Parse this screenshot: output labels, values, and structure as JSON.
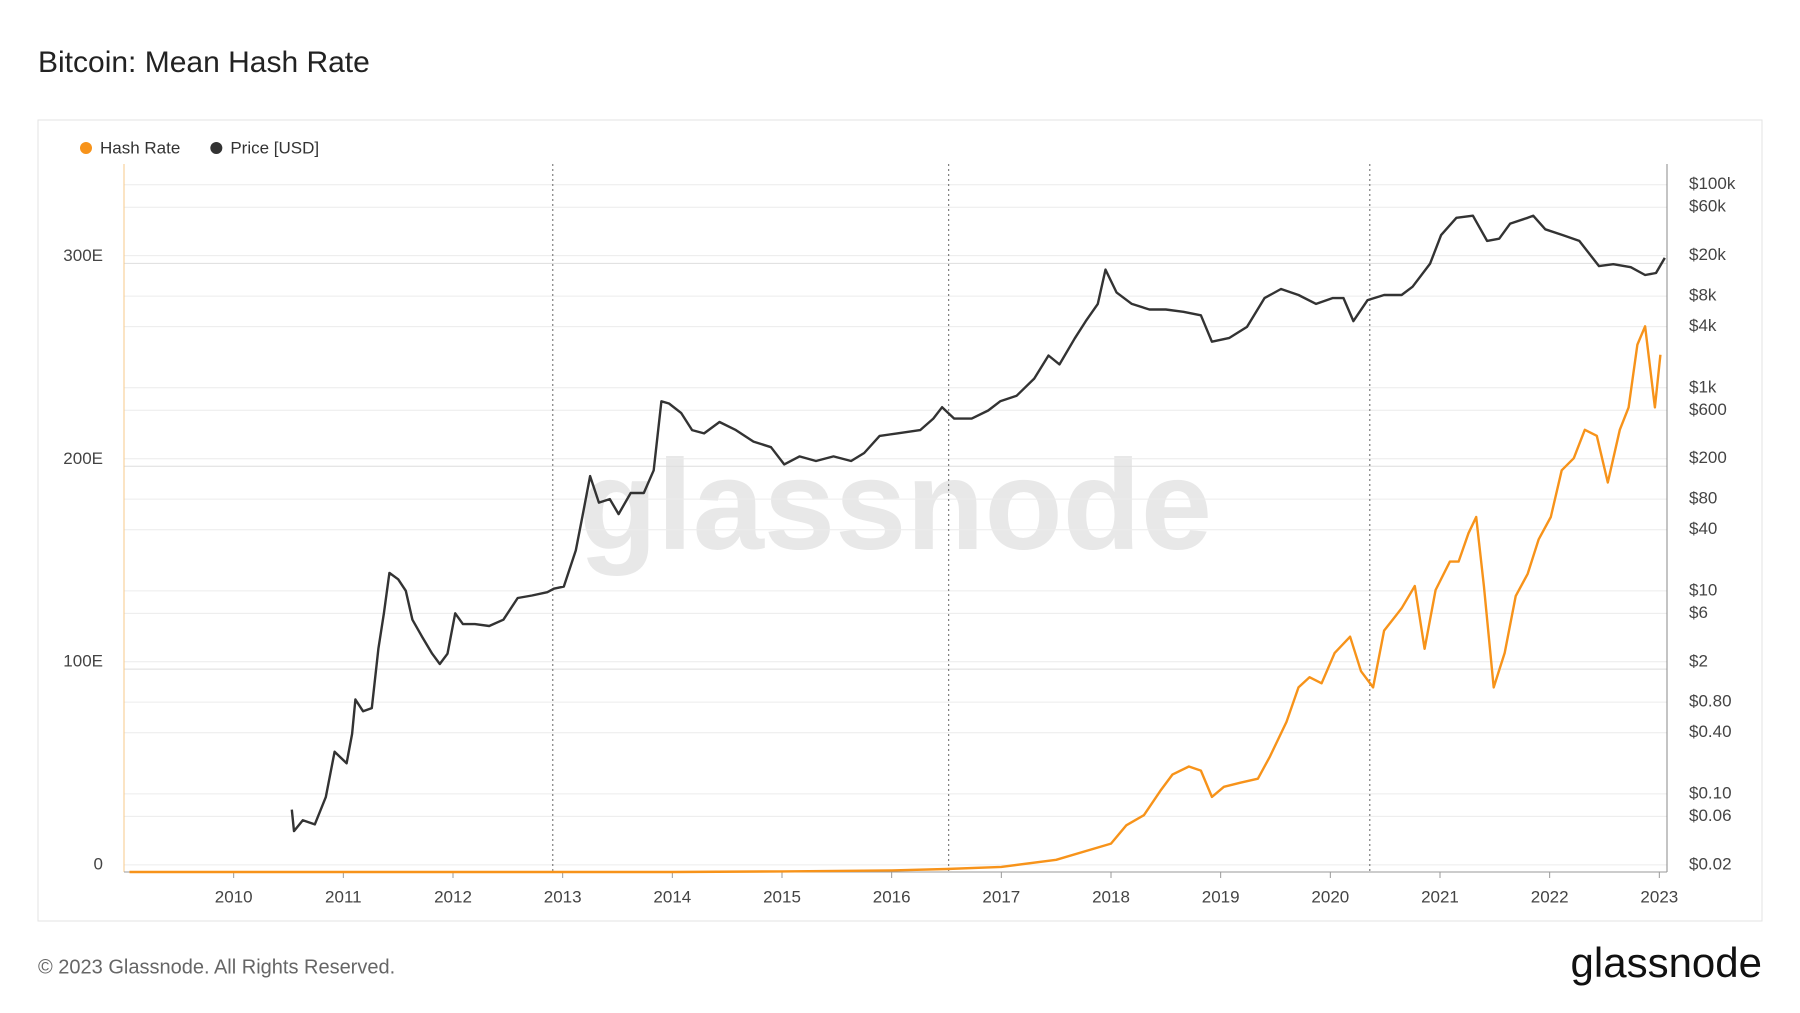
{
  "chart_data": {
    "type": "line",
    "title": "Bitcoin: Mean Hash Rate",
    "watermark": "glassnode",
    "xlim": [
      2009,
      2023.07
    ],
    "xticks": [
      2010,
      2011,
      2012,
      2013,
      2014,
      2015,
      2016,
      2017,
      2018,
      2019,
      2020,
      2021,
      2022,
      2023
    ],
    "ylim": [
      0,
      349
    ],
    "yticks": [
      0,
      {
        "value": 100,
        "label": "100E"
      },
      {
        "value": 200,
        "label": "200E"
      },
      {
        "value": 300,
        "label": "300E"
      }
    ],
    "y2lim": [
      0.017,
      160000
    ],
    "y2scale": "log",
    "y2ticks": [
      {
        "value": 100000,
        "label": "$100k"
      },
      {
        "value": 60000,
        "label": "$60k"
      },
      {
        "value": 20000,
        "label": "$20k"
      },
      {
        "value": 8000,
        "label": "$8k"
      },
      {
        "value": 4000,
        "label": "$4k"
      },
      {
        "value": 1000,
        "label": "$1k"
      },
      {
        "value": 600,
        "label": "$600"
      },
      {
        "value": 200,
        "label": "$200"
      },
      {
        "value": 80,
        "label": "$80"
      },
      {
        "value": 40,
        "label": "$40"
      },
      {
        "value": 10,
        "label": "$10"
      },
      {
        "value": 6,
        "label": "$6"
      },
      {
        "value": 2,
        "label": "$2"
      },
      {
        "value": 0.8,
        "label": "$0.80"
      },
      {
        "value": 0.4,
        "label": "$0.40"
      },
      {
        "value": 0.1,
        "label": "$0.10"
      },
      {
        "value": 0.06,
        "label": "$0.06"
      },
      {
        "value": 0.02,
        "label": "$0.02"
      }
    ],
    "grid": true,
    "halvings": [
      2012.91,
      2016.52,
      2020.36
    ],
    "legend": "top-left",
    "series": [
      {
        "name": "Hash Rate",
        "color": "#f7931a",
        "axis": "y",
        "x": [
          2009.05,
          2011.0,
          2013.0,
          2014.0,
          2015.0,
          2016.0,
          2016.5,
          2017.0,
          2017.5,
          2018.0,
          2018.14,
          2018.3,
          2018.45,
          2018.56,
          2018.71,
          2018.82,
          2018.92,
          2019.03,
          2019.18,
          2019.34,
          2019.45,
          2019.6,
          2019.71,
          2019.81,
          2019.92,
          2020.04,
          2020.18,
          2020.28,
          2020.39,
          2020.49,
          2020.65,
          2020.77,
          2020.86,
          2020.96,
          2021.09,
          2021.17,
          2021.26,
          2021.33,
          2021.4,
          2021.49,
          2021.59,
          2021.69,
          2021.8,
          2021.9,
          2022.01,
          2022.11,
          2022.22,
          2022.32,
          2022.43,
          2022.53,
          2022.64,
          2022.72,
          2022.8,
          2022.87,
          2022.96,
          2023.01
        ],
        "values": [
          0,
          0,
          0.02,
          0.01,
          0.3,
          0.8,
          1.5,
          2.5,
          6,
          14,
          23,
          28,
          40,
          48,
          52,
          50,
          37,
          42,
          44,
          46,
          57,
          74,
          91,
          96,
          93,
          108,
          116,
          99,
          91,
          119,
          130,
          141,
          110,
          139,
          153,
          153,
          167,
          175,
          141,
          91,
          108,
          136,
          147,
          164,
          175,
          198,
          204,
          218,
          215,
          192,
          218,
          229,
          260,
          269,
          229,
          255
        ]
      },
      {
        "name": "Price [USD]",
        "color": "#333333",
        "axis": "y2",
        "x": [
          2010.53,
          2010.55,
          2010.63,
          2010.74,
          2010.84,
          2010.92,
          2011.03,
          2011.08,
          2011.11,
          2011.18,
          2011.26,
          2011.32,
          2011.37,
          2011.42,
          2011.5,
          2011.57,
          2011.63,
          2011.72,
          2011.81,
          2011.88,
          2011.95,
          2012.02,
          2012.09,
          2012.2,
          2012.33,
          2012.46,
          2012.59,
          2012.72,
          2012.86,
          2012.92,
          2013.01,
          2013.12,
          2013.18,
          2013.25,
          2013.33,
          2013.43,
          2013.51,
          2013.62,
          2013.74,
          2013.83,
          2013.9,
          2013.97,
          2014.08,
          2014.18,
          2014.29,
          2014.43,
          2014.58,
          2014.74,
          2014.9,
          2015.02,
          2015.16,
          2015.31,
          2015.47,
          2015.63,
          2015.75,
          2015.89,
          2016.05,
          2016.26,
          2016.38,
          2016.46,
          2016.57,
          2016.73,
          2016.88,
          2016.99,
          2017.14,
          2017.3,
          2017.43,
          2017.53,
          2017.67,
          2017.77,
          2017.88,
          2017.95,
          2018.05,
          2018.19,
          2018.35,
          2018.5,
          2018.66,
          2018.82,
          2018.92,
          2019.08,
          2019.24,
          2019.4,
          2019.55,
          2019.71,
          2019.87,
          2020.02,
          2020.12,
          2020.21,
          2020.34,
          2020.49,
          2020.65,
          2020.75,
          2020.91,
          2021.01,
          2021.15,
          2021.3,
          2021.43,
          2021.54,
          2021.64,
          2021.8,
          2021.85,
          2021.96,
          2022.12,
          2022.27,
          2022.45,
          2022.58,
          2022.74,
          2022.87,
          2022.97,
          2023.05
        ],
        "values": [
          0.07,
          0.043,
          0.055,
          0.05,
          0.093,
          0.26,
          0.2,
          0.39,
          0.85,
          0.65,
          0.7,
          2.7,
          6,
          15,
          13,
          10,
          5.2,
          3.5,
          2.4,
          1.9,
          2.4,
          6,
          4.7,
          4.7,
          4.5,
          5.2,
          8.5,
          9,
          9.7,
          10.5,
          11,
          25,
          54,
          135,
          74,
          80,
          57,
          92,
          92,
          154,
          735,
          700,
          566,
          383,
          355,
          460,
          383,
          295,
          260,
          176,
          211,
          190,
          211,
          190,
          228,
          336,
          355,
          383,
          497,
          644,
          497,
          497,
          597,
          735,
          836,
          1230,
          2080,
          1700,
          3070,
          4540,
          6700,
          14600,
          8700,
          6700,
          5900,
          5900,
          5600,
          5170,
          2840,
          3100,
          3980,
          7640,
          9400,
          8200,
          6700,
          7640,
          7640,
          4540,
          7300,
          8200,
          8200,
          9900,
          16700,
          31900,
          47200,
          49500,
          28000,
          29400,
          41400,
          47200,
          49500,
          36400,
          31900,
          28000,
          15800,
          16500,
          15400,
          12900,
          13500,
          19000
        ]
      }
    ]
  },
  "footer": {
    "copyright": "© 2023 Glassnode. All Rights Reserved.",
    "brand": "glassnode"
  }
}
